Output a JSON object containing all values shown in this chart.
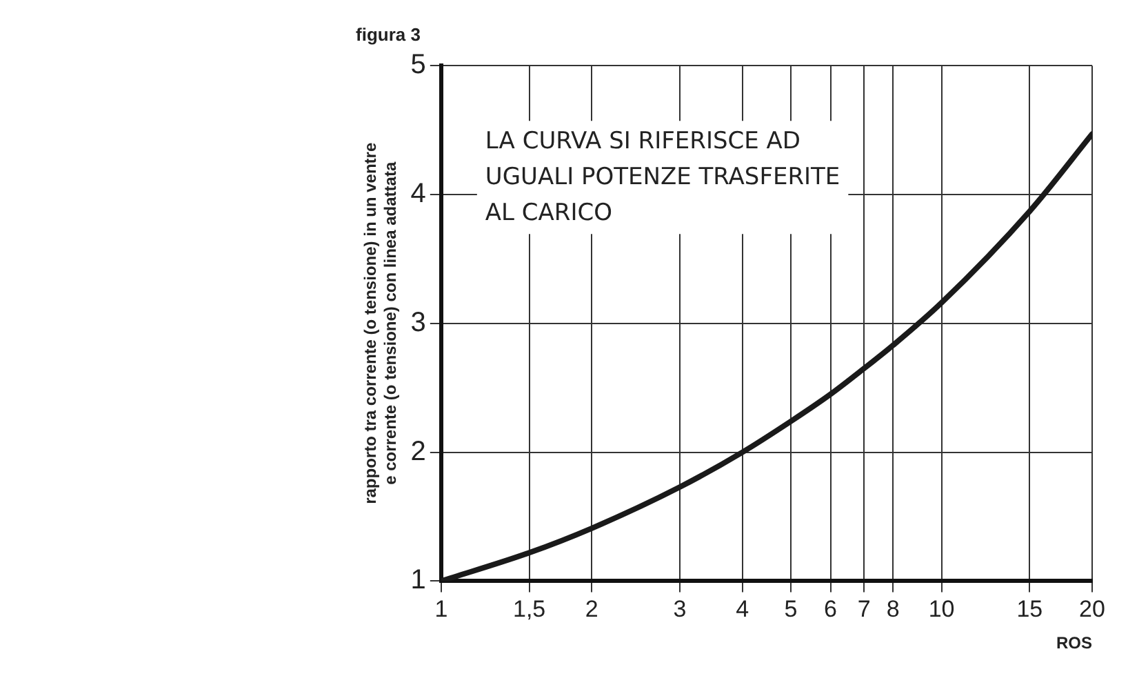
{
  "chart_data": {
    "type": "line",
    "title": "figura 3",
    "xlabel": "ROS",
    "ylabel": "rapporto tra corrente (o tensione) in un ventre e corrente (o tensione) con linea adattata",
    "x": [
      1,
      1.5,
      2,
      3,
      4,
      5,
      6,
      7,
      8,
      10,
      15,
      20
    ],
    "series": [
      {
        "color": "#1a1a1a",
        "values": [
          1,
          1.22,
          1.41,
          1.73,
          2,
          2.24,
          2.45,
          2.65,
          2.83,
          3.16,
          3.87,
          4.47
        ]
      }
    ],
    "log": "x",
    "xlim": [
      1,
      20
    ],
    "ylim": [
      1,
      5
    ],
    "xticks": [
      1,
      {
        "value": 1.5,
        "label": "1,5"
      },
      2,
      3,
      4,
      5,
      6,
      7,
      8,
      10,
      15,
      20
    ],
    "yticks": [
      1,
      2,
      3,
      4,
      5
    ],
    "grid": true,
    "legend": false,
    "marker": "none",
    "line_style": "solid",
    "annotations": [
      "LA CURVA SI RIFERISCE AD UGUALI POTENZE TRASFERITE AL CARICO"
    ]
  }
}
